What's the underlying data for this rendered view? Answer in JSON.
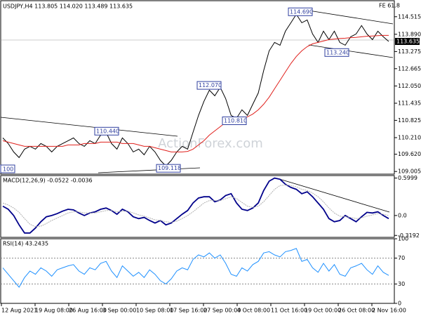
{
  "watermark": "ActionForex.com",
  "edge_label": "100",
  "fe_label": "FE 61.8",
  "x_labels": [
    "12 Aug 2021",
    "19 Aug 08:00",
    "26 Aug 16:00",
    "3 Sep 00:00",
    "10 Sep 08:00",
    "17 Sep 16:00",
    "27 Sep 00:00",
    "4 Oct 08:00",
    "11 Oct 16:00",
    "19 Oct 00:00",
    "26 Oct 08:00",
    "2 Nov 16:00"
  ],
  "chart_data": [
    {
      "type": "line",
      "title": "USDJPY,H4 113.805 114.020 113.489 113.635",
      "ylim": [
        108.91,
        115.06
      ],
      "yticks": [
        114.515,
        {
          "value": 113.89,
          "label": "113.890"
        },
        113.275,
        112.665,
        {
          "value": 112.05,
          "label": "112.050"
        },
        111.435,
        110.825,
        {
          "value": 110.21,
          "label": "110.210"
        },
        {
          "value": 109.62,
          "label": "109.620"
        },
        109.005
      ],
      "last_price": 113.635,
      "annotations": [
        {
          "value": 114.69,
          "label": "114.690"
        },
        {
          "value": 113.24,
          "label": "113.240"
        },
        {
          "value": 112.07,
          "label": "112.070"
        },
        {
          "value": 110.81,
          "label": "110.810"
        },
        {
          "value": 110.44,
          "label": "110.440"
        },
        {
          "value": 109.118,
          "label": "109.118"
        }
      ],
      "series": [
        {
          "name": "Close",
          "color": "#000000",
          "values": [
            110.2,
            110.0,
            109.7,
            109.5,
            109.8,
            109.9,
            109.8,
            110.0,
            109.9,
            109.7,
            109.9,
            110.0,
            110.1,
            110.2,
            110.0,
            109.9,
            110.1,
            110.0,
            110.3,
            110.4,
            110.0,
            109.8,
            110.2,
            110.0,
            109.7,
            109.8,
            109.6,
            109.9,
            109.7,
            109.4,
            109.2,
            109.4,
            109.7,
            109.9,
            109.8,
            110.4,
            111.0,
            111.5,
            111.9,
            111.7,
            112.0,
            111.6,
            111.0,
            110.9,
            111.2,
            111.0,
            111.4,
            111.8,
            112.6,
            113.3,
            113.6,
            113.5,
            114.0,
            114.3,
            114.6,
            114.3,
            114.4,
            113.9,
            113.6,
            114.0,
            113.7,
            114.0,
            113.6,
            113.5,
            113.8,
            113.9,
            114.2,
            113.9,
            113.7,
            114.0,
            113.8,
            113.635
          ]
        },
        {
          "name": "MA",
          "color": "#e0201c",
          "values": [
            110.1,
            110.05,
            110.0,
            109.95,
            109.9,
            109.9,
            109.9,
            109.9,
            109.9,
            109.9,
            109.9,
            109.9,
            109.95,
            109.95,
            109.95,
            110.0,
            110.0,
            110.0,
            110.05,
            110.05,
            110.05,
            110.05,
            110.0,
            110.0,
            110.0,
            109.95,
            109.9,
            109.9,
            109.85,
            109.8,
            109.75,
            109.7,
            109.7,
            109.7,
            109.72,
            109.8,
            109.95,
            110.1,
            110.3,
            110.45,
            110.6,
            110.75,
            110.8,
            110.85,
            110.9,
            110.95,
            111.05,
            111.2,
            111.4,
            111.65,
            111.95,
            112.25,
            112.55,
            112.85,
            113.1,
            113.3,
            113.45,
            113.55,
            113.6,
            113.65,
            113.7,
            113.72,
            113.74,
            113.75,
            113.77,
            113.78,
            113.8,
            113.82,
            113.83,
            113.84,
            113.85,
            113.85
          ]
        }
      ]
    },
    {
      "type": "line",
      "title": "MACD(12,26,9) -0.0522 -0.0036",
      "ylim": [
        -0.35,
        0.64
      ],
      "yticks": [
        0.5999,
        {
          "value": 0,
          "label": "0.0"
        },
        -0.3192
      ],
      "series": [
        {
          "name": "MACD",
          "color": "#00008b",
          "values": [
            0.15,
            0.1,
            0.0,
            -0.15,
            -0.28,
            -0.28,
            -0.2,
            -0.1,
            -0.02,
            0.0,
            0.03,
            0.07,
            0.1,
            0.09,
            0.04,
            0.0,
            0.04,
            0.06,
            0.1,
            0.12,
            0.08,
            0.02,
            0.1,
            0.06,
            -0.02,
            -0.05,
            -0.03,
            -0.08,
            -0.12,
            -0.08,
            -0.15,
            -0.12,
            -0.05,
            0.02,
            0.08,
            0.2,
            0.28,
            0.3,
            0.3,
            0.22,
            0.25,
            0.32,
            0.35,
            0.2,
            0.1,
            0.08,
            0.12,
            0.2,
            0.4,
            0.55,
            0.6,
            0.58,
            0.5,
            0.45,
            0.42,
            0.35,
            0.38,
            0.3,
            0.2,
            0.1,
            -0.05,
            -0.1,
            -0.08,
            0.0,
            -0.05,
            -0.1,
            -0.02,
            0.05,
            0.04,
            0.06,
            0.0,
            -0.05
          ]
        },
        {
          "name": "Signal",
          "color": "#b0b0b0",
          "values": [
            0.2,
            0.17,
            0.12,
            0.05,
            -0.05,
            -0.14,
            -0.18,
            -0.17,
            -0.13,
            -0.08,
            -0.04,
            0.0,
            0.04,
            0.06,
            0.06,
            0.04,
            0.04,
            0.04,
            0.06,
            0.08,
            0.08,
            0.06,
            0.07,
            0.07,
            0.04,
            0.01,
            -0.01,
            -0.04,
            -0.07,
            -0.08,
            -0.1,
            -0.11,
            -0.09,
            -0.05,
            0.0,
            0.06,
            0.13,
            0.2,
            0.24,
            0.24,
            0.24,
            0.27,
            0.3,
            0.27,
            0.21,
            0.15,
            0.13,
            0.15,
            0.22,
            0.32,
            0.42,
            0.48,
            0.49,
            0.48,
            0.46,
            0.42,
            0.4,
            0.36,
            0.3,
            0.22,
            0.12,
            0.04,
            -0.01,
            -0.02,
            -0.03,
            -0.05,
            -0.04,
            -0.01,
            0.01,
            0.03,
            0.02,
            0.0
          ]
        }
      ]
    },
    {
      "type": "line",
      "title": "RSI(14) 43.2435",
      "ylim": [
        0,
        100
      ],
      "yticks": [
        100,
        70,
        30,
        0
      ],
      "guides": [
        70,
        30
      ],
      "series": [
        {
          "name": "RSI",
          "color": "#1e90ff",
          "values": [
            55,
            45,
            35,
            25,
            40,
            50,
            45,
            55,
            50,
            42,
            52,
            55,
            58,
            60,
            50,
            45,
            55,
            52,
            62,
            65,
            50,
            40,
            58,
            50,
            42,
            48,
            40,
            52,
            45,
            35,
            30,
            38,
            50,
            55,
            52,
            68,
            75,
            72,
            78,
            70,
            75,
            62,
            45,
            42,
            55,
            50,
            60,
            65,
            78,
            80,
            75,
            72,
            80,
            82,
            85,
            65,
            68,
            55,
            48,
            62,
            50,
            60,
            45,
            42,
            55,
            58,
            62,
            52,
            45,
            58,
            48,
            43.2435
          ]
        }
      ]
    }
  ]
}
